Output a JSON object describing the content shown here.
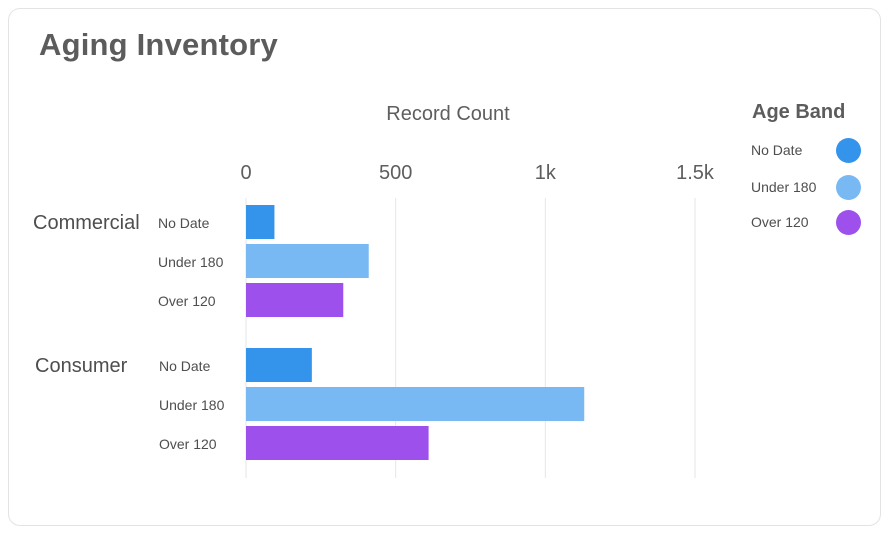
{
  "card": {
    "title": "Aging Inventory"
  },
  "legend": {
    "title": "Age Band",
    "items": [
      {
        "label": "No Date",
        "color": "#3494ec"
      },
      {
        "label": "Under 180",
        "color": "#78b8f3"
      },
      {
        "label": "Over 120",
        "color": "#9e50ec"
      }
    ]
  },
  "chart_data": {
    "type": "bar",
    "orientation": "horizontal",
    "xlabel": "Record Count",
    "xlim": [
      0,
      1500
    ],
    "x_ticks": [
      {
        "value": 0,
        "label": "0"
      },
      {
        "value": 500,
        "label": "500"
      },
      {
        "value": 1000,
        "label": "1k"
      },
      {
        "value": 1500,
        "label": "1.5k"
      }
    ],
    "grid": true,
    "legend_position": "right",
    "groups": [
      {
        "name": "Commercial",
        "bars": [
          {
            "category": "No Date",
            "value": 95
          },
          {
            "category": "Under 180",
            "value": 410
          },
          {
            "category": "Over 120",
            "value": 325
          }
        ]
      },
      {
        "name": "Consumer",
        "bars": [
          {
            "category": "No Date",
            "value": 220
          },
          {
            "category": "Under 180",
            "value": 1130
          },
          {
            "category": "Over 120",
            "value": 610
          }
        ]
      }
    ]
  }
}
